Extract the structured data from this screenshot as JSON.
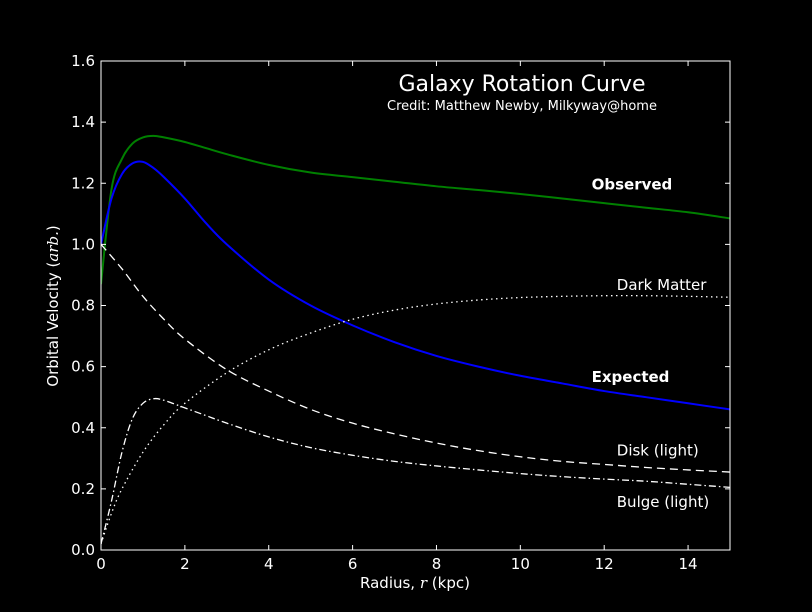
{
  "chart_data": {
    "type": "line",
    "title": "Galaxy Rotation Curve",
    "subtitle": "Credit:  Matthew Newby, Milkyway@home",
    "xlabel": {
      "prefix": "Radius, ",
      "symbol": "r",
      "suffix": " (kpc)"
    },
    "ylabel": {
      "prefix": "Orbital Velocity (",
      "symbol": "arb.",
      "suffix": ")"
    },
    "xlim": [
      0,
      15
    ],
    "ylim": [
      0.0,
      1.6
    ],
    "x_ticks": [
      0,
      2,
      4,
      6,
      8,
      10,
      12,
      14
    ],
    "x_tick_labels": [
      "0",
      "2",
      "4",
      "6",
      "8",
      "10",
      "12",
      "14"
    ],
    "y_ticks": [
      0.0,
      0.2,
      0.4,
      0.6,
      0.8,
      1.0,
      1.2,
      1.4,
      1.6
    ],
    "y_tick_labels": [
      "0.0",
      "0.2",
      "0.4",
      "0.6",
      "0.8",
      "1.0",
      "1.2",
      "1.4",
      "1.6"
    ],
    "grid": false,
    "background": "#000000",
    "foreground": "#ffffff",
    "series": [
      {
        "name": "Observed",
        "color": "#008000",
        "style": "solid",
        "x": [
          0,
          0.25,
          0.5,
          0.75,
          1.0,
          1.25,
          1.5,
          2.0,
          2.5,
          3,
          4,
          5,
          6,
          7,
          8,
          9,
          10,
          11,
          12,
          13,
          14,
          15
        ],
        "y": [
          0.87,
          1.18,
          1.28,
          1.33,
          1.35,
          1.355,
          1.35,
          1.335,
          1.315,
          1.295,
          1.26,
          1.235,
          1.22,
          1.205,
          1.19,
          1.178,
          1.165,
          1.15,
          1.135,
          1.12,
          1.105,
          1.085
        ]
      },
      {
        "name": "Expected",
        "color": "#0000ff",
        "style": "solid",
        "x": [
          0,
          0.25,
          0.5,
          0.75,
          1.0,
          1.25,
          1.5,
          2.0,
          2.5,
          3,
          4,
          5,
          6,
          7,
          8,
          9,
          10,
          11,
          12,
          13,
          14,
          15
        ],
        "y": [
          1.0,
          1.15,
          1.23,
          1.265,
          1.27,
          1.25,
          1.22,
          1.15,
          1.07,
          1.0,
          0.885,
          0.8,
          0.735,
          0.68,
          0.635,
          0.6,
          0.57,
          0.545,
          0.52,
          0.5,
          0.48,
          0.46
        ]
      },
      {
        "name": "Dark Matter",
        "color": "#ffffff",
        "style": "dotted",
        "x": [
          0,
          0.25,
          0.5,
          1,
          1.5,
          2,
          3,
          4,
          5,
          6,
          7,
          8,
          9,
          10,
          11,
          12,
          13,
          14,
          15
        ],
        "y": [
          0.02,
          0.12,
          0.2,
          0.32,
          0.41,
          0.48,
          0.58,
          0.655,
          0.71,
          0.755,
          0.785,
          0.805,
          0.818,
          0.826,
          0.83,
          0.832,
          0.832,
          0.83,
          0.827
        ]
      },
      {
        "name": "Disk (light)",
        "color": "#ffffff",
        "style": "dashed",
        "x": [
          0,
          0.5,
          1,
          1.5,
          2,
          3,
          4,
          5,
          6,
          7,
          8,
          9,
          10,
          11,
          12,
          13,
          14,
          15
        ],
        "y": [
          1.0,
          0.92,
          0.83,
          0.755,
          0.69,
          0.59,
          0.52,
          0.46,
          0.415,
          0.38,
          0.35,
          0.325,
          0.305,
          0.29,
          0.28,
          0.27,
          0.262,
          0.255
        ]
      },
      {
        "name": "Bulge (light)",
        "color": "#ffffff",
        "style": "dashdot",
        "x": [
          0,
          0.25,
          0.5,
          0.75,
          1.0,
          1.25,
          1.5,
          2,
          2.5,
          3,
          4,
          5,
          6,
          7,
          8,
          9,
          10,
          11,
          12,
          13,
          14,
          15
        ],
        "y": [
          0.02,
          0.16,
          0.32,
          0.43,
          0.48,
          0.495,
          0.49,
          0.465,
          0.44,
          0.415,
          0.37,
          0.335,
          0.31,
          0.29,
          0.275,
          0.262,
          0.25,
          0.24,
          0.232,
          0.225,
          0.215,
          0.205
        ]
      }
    ],
    "annotations": [
      {
        "text": "Observed",
        "x": 11.7,
        "y": 1.18,
        "bold": true
      },
      {
        "text": "Dark Matter",
        "x": 12.3,
        "y": 0.85,
        "bold": false
      },
      {
        "text": "Expected",
        "x": 11.7,
        "y": 0.55,
        "bold": true
      },
      {
        "text": "Disk (light)",
        "x": 12.3,
        "y": 0.31,
        "bold": false
      },
      {
        "text": "Bulge (light)",
        "x": 12.3,
        "y": 0.14,
        "bold": false
      }
    ]
  }
}
